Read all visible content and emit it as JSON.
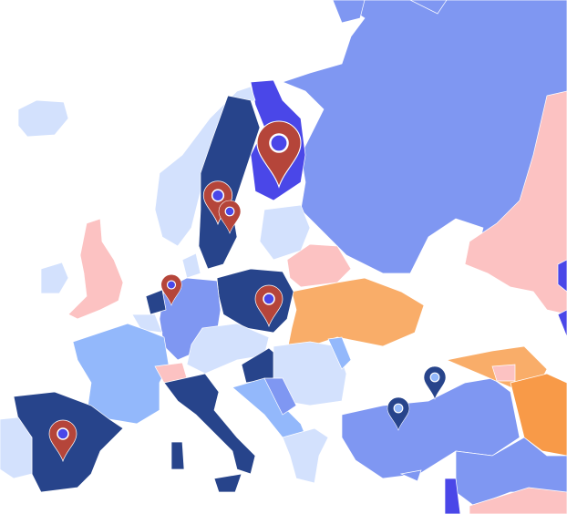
{
  "map": {
    "background": "#ffffff",
    "palette": {
      "navy": "#27448b",
      "violet": "#4a47e8",
      "medium_blue": "#7f97f2",
      "light_blue": "#93b8fb",
      "pale_blue": "#d3e1fd",
      "pink": "#fcc2c2",
      "orange": "#f9ad69",
      "dark_orange": "#f89a48"
    },
    "markers": [
      {
        "icon": "map-pin-icon",
        "color": "#b5453a"
      },
      {
        "icon": "map-pin-icon",
        "color": "#b5453a"
      },
      {
        "icon": "map-pin-icon",
        "color": "#b5453a"
      },
      {
        "icon": "map-pin-icon",
        "color": "#b5453a"
      },
      {
        "icon": "map-pin-icon",
        "color": "#b5453a"
      },
      {
        "icon": "map-pin-icon",
        "color": "#b5453a"
      },
      {
        "icon": "map-pin-icon",
        "color": "#27448b"
      },
      {
        "icon": "map-pin-icon",
        "color": "#27448b"
      }
    ]
  }
}
